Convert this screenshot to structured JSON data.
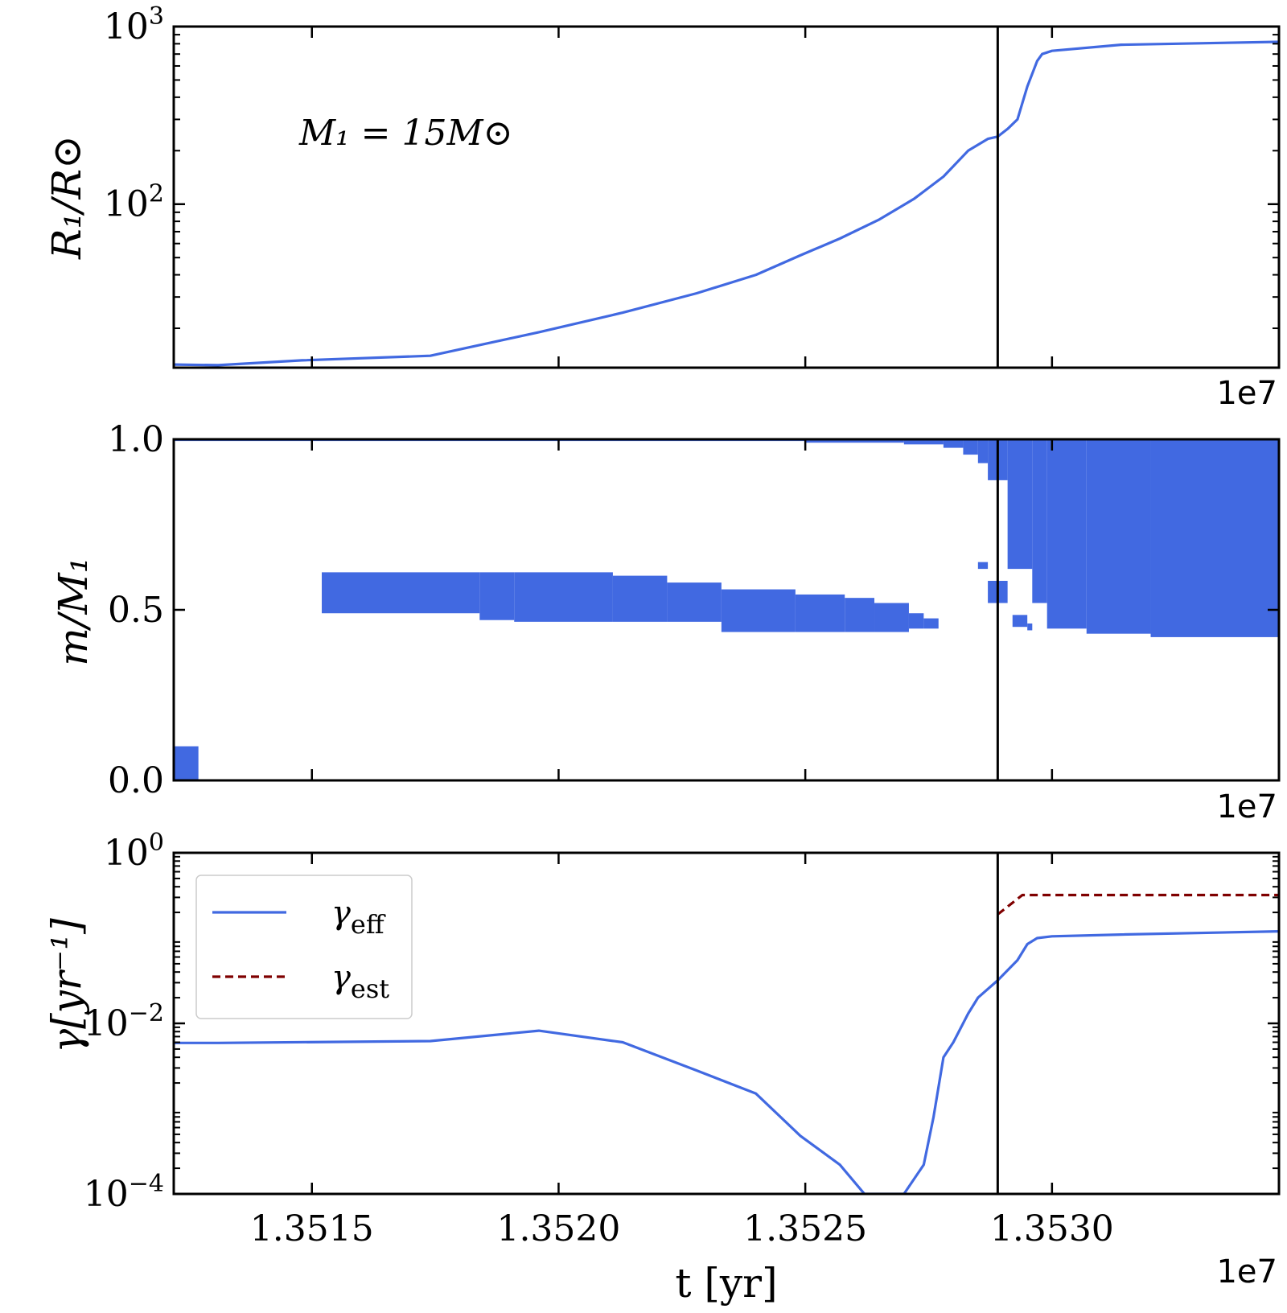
{
  "figure": {
    "offset_text": "1e7",
    "xlabel": "t [yr]",
    "vline_t": 1.35289
  },
  "chart_data": [
    {
      "type": "line",
      "panel": "radius",
      "ylabel": "R₁/R⊙",
      "yscale": "log",
      "ylim": [
        12,
        1000
      ],
      "xlim": [
        1.35122,
        1.35346
      ],
      "x_ticks": [
        1.3515,
        1.352,
        1.3525,
        1.353
      ],
      "y_ticks": [
        {
          "value": 100,
          "base": "10",
          "exp": "2"
        },
        {
          "value": 1000,
          "base": "10",
          "exp": "3"
        }
      ],
      "annotation": "M₁ = 15M⊙",
      "series": [
        {
          "color": "#4169e1",
          "x": [
            1.35122,
            1.35131,
            1.35148,
            1.35174,
            1.35196,
            1.35213,
            1.35228,
            1.3524,
            1.35249,
            1.35257,
            1.35265,
            1.35272,
            1.35278,
            1.35283,
            1.35287,
            1.35289,
            1.35291,
            1.35293,
            1.35295,
            1.35297,
            1.35298,
            1.353,
            1.35314,
            1.35346
          ],
          "y": [
            12.5,
            12.4,
            13.2,
            14.0,
            19.0,
            24.5,
            31.5,
            40.0,
            51.5,
            64.0,
            82.0,
            107.0,
            143.0,
            200.0,
            233.0,
            240.0,
            265.0,
            300.0,
            460.0,
            640.0,
            700.0,
            730.0,
            790.0,
            820.0
          ]
        }
      ]
    },
    {
      "type": "area",
      "panel": "mass_coordinate",
      "ylabel": "m/M₁",
      "ylim": [
        0.0,
        1.0
      ],
      "xlim": [
        1.35122,
        1.35346
      ],
      "x_ticks": [
        1.3515,
        1.352,
        1.3525,
        1.353
      ],
      "y_ticks": [
        {
          "value": 0.0,
          "label": "0.0"
        },
        {
          "value": 0.5,
          "label": "0.5"
        },
        {
          "value": 1.0,
          "label": "1.0"
        }
      ],
      "color": "#4169e1",
      "regions": [
        {
          "x0": 1.35122,
          "x1": 1.35127,
          "y0": 0.0,
          "y1": 0.1
        },
        {
          "x0": 1.35152,
          "x1": 1.35184,
          "y0": 0.49,
          "y1": 0.61
        },
        {
          "x0": 1.35184,
          "x1": 1.35191,
          "y0": 0.47,
          "y1": 0.61
        },
        {
          "x0": 1.35191,
          "x1": 1.35211,
          "y0": 0.465,
          "y1": 0.61
        },
        {
          "x0": 1.35211,
          "x1": 1.35222,
          "y0": 0.465,
          "y1": 0.6
        },
        {
          "x0": 1.35222,
          "x1": 1.35233,
          "y0": 0.465,
          "y1": 0.58
        },
        {
          "x0": 1.35233,
          "x1": 1.35248,
          "y0": 0.435,
          "y1": 0.56
        },
        {
          "x0": 1.35248,
          "x1": 1.35258,
          "y0": 0.435,
          "y1": 0.545
        },
        {
          "x0": 1.35258,
          "x1": 1.35264,
          "y0": 0.435,
          "y1": 0.535
        },
        {
          "x0": 1.35264,
          "x1": 1.35271,
          "y0": 0.435,
          "y1": 0.52
        },
        {
          "x0": 1.35271,
          "x1": 1.35274,
          "y0": 0.445,
          "y1": 0.49
        },
        {
          "x0": 1.35274,
          "x1": 1.35277,
          "y0": 0.445,
          "y1": 0.475
        },
        {
          "x0": 1.35285,
          "x1": 1.35287,
          "y0": 0.62,
          "y1": 0.64
        },
        {
          "x0": 1.35287,
          "x1": 1.35291,
          "y0": 0.52,
          "y1": 0.585
        },
        {
          "x0": 1.35292,
          "x1": 1.35295,
          "y0": 0.45,
          "y1": 0.485
        },
        {
          "x0": 1.35295,
          "x1": 1.35296,
          "y0": 0.44,
          "y1": 0.46
        },
        {
          "x0": 1.35287,
          "x1": 1.35291,
          "y0": 0.88,
          "y1": 1.0
        },
        {
          "x0": 1.35291,
          "x1": 1.35296,
          "y0": 0.62,
          "y1": 1.0
        },
        {
          "x0": 1.35296,
          "x1": 1.35299,
          "y0": 0.52,
          "y1": 1.0
        },
        {
          "x0": 1.35299,
          "x1": 1.35307,
          "y0": 0.445,
          "y1": 1.0
        },
        {
          "x0": 1.35307,
          "x1": 1.3532,
          "y0": 0.43,
          "y1": 1.0
        },
        {
          "x0": 1.3532,
          "x1": 1.35346,
          "y0": 0.42,
          "y1": 1.0
        },
        {
          "x0": 1.35122,
          "x1": 1.3525,
          "y0": 0.995,
          "y1": 1.0
        },
        {
          "x0": 1.3525,
          "x1": 1.3527,
          "y0": 0.99,
          "y1": 1.0
        },
        {
          "x0": 1.3527,
          "x1": 1.35278,
          "y0": 0.985,
          "y1": 1.0
        },
        {
          "x0": 1.35278,
          "x1": 1.35282,
          "y0": 0.975,
          "y1": 1.0
        },
        {
          "x0": 1.35282,
          "x1": 1.35285,
          "y0": 0.955,
          "y1": 1.0
        },
        {
          "x0": 1.35285,
          "x1": 1.35287,
          "y0": 0.93,
          "y1": 1.0
        }
      ]
    },
    {
      "type": "line",
      "panel": "gamma",
      "ylabel": "γ[yr⁻¹]",
      "yscale": "log",
      "ylim": [
        0.0001,
        1.0
      ],
      "xlim": [
        1.35122,
        1.35346
      ],
      "x_ticks": [
        1.3515,
        1.352,
        1.3525,
        1.353
      ],
      "x_tick_labels": [
        "1.3515",
        "1.3520",
        "1.3525",
        "1.3530"
      ],
      "y_ticks": [
        {
          "value": 0.0001,
          "base": "10",
          "exp": "−4"
        },
        {
          "value": 0.01,
          "base": "10",
          "exp": "−2"
        },
        {
          "value": 1.0,
          "base": "10",
          "exp": "0"
        }
      ],
      "legend": {
        "position": "upper-left"
      },
      "series": [
        {
          "name": "γeff",
          "color": "#4169e1",
          "style": "solid",
          "x": [
            1.35122,
            1.35131,
            1.35174,
            1.35196,
            1.35213,
            1.35228,
            1.3524,
            1.35249,
            1.35257,
            1.35262,
            1.3527,
            1.35274,
            1.35276,
            1.35278,
            1.3528,
            1.35283,
            1.35285,
            1.35289,
            1.35293,
            1.35295,
            1.35297,
            1.353,
            1.35314,
            1.35346
          ],
          "y": [
            0.0059,
            0.0059,
            0.0062,
            0.0082,
            0.006,
            0.0028,
            0.0015,
            0.00048,
            0.00022,
            0.0001,
            0.0001,
            0.00022,
            0.0008,
            0.004,
            0.006,
            0.013,
            0.02,
            0.032,
            0.055,
            0.085,
            0.1,
            0.105,
            0.11,
            0.12
          ]
        },
        {
          "name": "γest",
          "color": "#7f0000",
          "style": "dashed",
          "x": [
            1.35289,
            1.35294,
            1.35346
          ],
          "y": [
            0.19,
            0.32,
            0.32
          ]
        }
      ]
    }
  ]
}
